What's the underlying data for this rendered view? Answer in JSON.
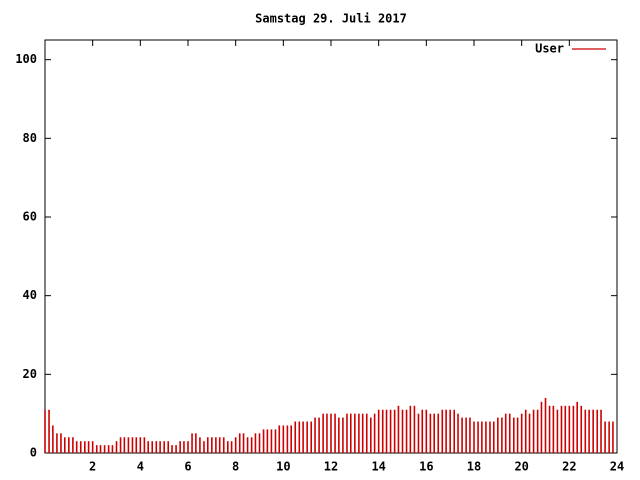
{
  "chart_data": {
    "type": "impulse",
    "title": "Samstag 29. Juli 2017",
    "xlim": [
      0,
      24
    ],
    "xticks": [
      2,
      4,
      6,
      8,
      10,
      12,
      14,
      16,
      18,
      20,
      22,
      24
    ],
    "ylim": [
      0,
      105
    ],
    "yticks": [
      0,
      20,
      40,
      60,
      80,
      100
    ],
    "legend": "top-right",
    "x": [
      0,
      0.17,
      0.33,
      0.5,
      0.67,
      0.83,
      1,
      1.17,
      1.33,
      1.5,
      1.67,
      1.83,
      2,
      2.17,
      2.33,
      2.5,
      2.67,
      2.83,
      3,
      3.17,
      3.33,
      3.5,
      3.67,
      3.83,
      4,
      4.17,
      4.33,
      4.5,
      4.67,
      4.83,
      5,
      5.17,
      5.33,
      5.5,
      5.67,
      5.83,
      6,
      6.17,
      6.33,
      6.5,
      6.67,
      6.83,
      7,
      7.17,
      7.33,
      7.5,
      7.67,
      7.83,
      8,
      8.17,
      8.33,
      8.5,
      8.67,
      8.83,
      9,
      9.17,
      9.33,
      9.5,
      9.67,
      9.83,
      10,
      10.17,
      10.33,
      10.5,
      10.67,
      10.83,
      11,
      11.17,
      11.33,
      11.5,
      11.67,
      11.83,
      12,
      12.17,
      12.33,
      12.5,
      12.67,
      12.83,
      13,
      13.17,
      13.33,
      13.5,
      13.67,
      13.83,
      14,
      14.17,
      14.33,
      14.5,
      14.67,
      14.83,
      15,
      15.17,
      15.33,
      15.5,
      15.67,
      15.83,
      16,
      16.17,
      16.33,
      16.5,
      16.67,
      16.83,
      17,
      17.17,
      17.33,
      17.5,
      17.67,
      17.83,
      18,
      18.17,
      18.33,
      18.5,
      18.67,
      18.83,
      19,
      19.17,
      19.33,
      19.5,
      19.67,
      19.83,
      20,
      20.17,
      20.33,
      20.5,
      20.67,
      20.83,
      21,
      21.17,
      21.33,
      21.5,
      21.67,
      21.83,
      22,
      22.17,
      22.33,
      22.5,
      22.67,
      22.83,
      23,
      23.17,
      23.33,
      23.5,
      23.67,
      23.83
    ],
    "series": [
      {
        "name": "User",
        "color": "#cc0000",
        "values": [
          11,
          11,
          7,
          5,
          5,
          4,
          4,
          4,
          3,
          3,
          3,
          3,
          3,
          2,
          2,
          2,
          2,
          2,
          3,
          4,
          4,
          4,
          4,
          4,
          4,
          4,
          3,
          3,
          3,
          3,
          3,
          3,
          2,
          2,
          3,
          3,
          3,
          5,
          5,
          4,
          3,
          4,
          4,
          4,
          4,
          4,
          3,
          3,
          4,
          5,
          5,
          4,
          4,
          5,
          5,
          6,
          6,
          6,
          6,
          7,
          7,
          7,
          7,
          8,
          8,
          8,
          8,
          8,
          9,
          9,
          10,
          10,
          10,
          10,
          9,
          9,
          10,
          10,
          10,
          10,
          10,
          10,
          9,
          10,
          11,
          11,
          11,
          11,
          11,
          12,
          11,
          11,
          12,
          12,
          10,
          11,
          11,
          10,
          10,
          10,
          11,
          11,
          11,
          11,
          10,
          9,
          9,
          9,
          8,
          8,
          8,
          8,
          8,
          8,
          9,
          9,
          10,
          10,
          9,
          9,
          10,
          11,
          10,
          11,
          11,
          13,
          14,
          12,
          12,
          11,
          12,
          12,
          12,
          12,
          13,
          12,
          11,
          11,
          11,
          11,
          11,
          8,
          8,
          8
        ]
      }
    ]
  }
}
